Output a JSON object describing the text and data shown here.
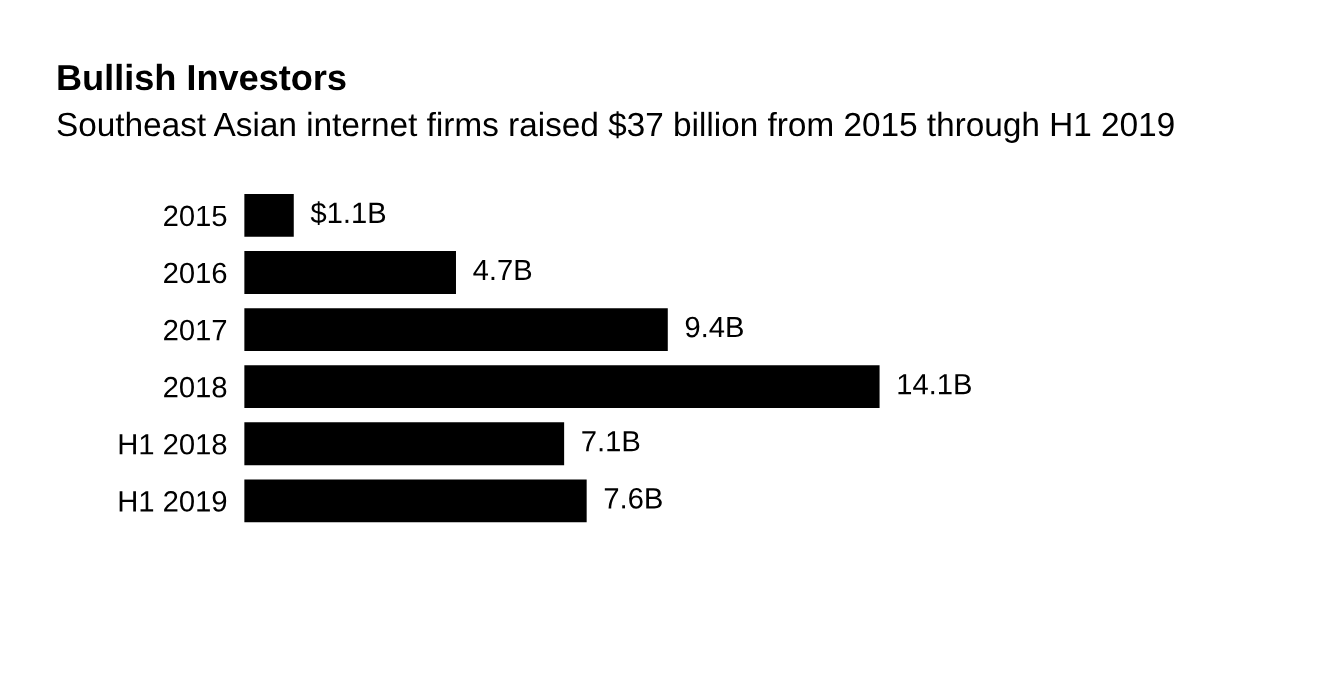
{
  "chart_data": {
    "type": "bar",
    "orientation": "horizontal",
    "title": "Bullish Investors",
    "subtitle": "Southeast Asian internet firms raised $37 billion from 2015 through H1 2019",
    "categories": [
      "2015",
      "2016",
      "2017",
      "2018",
      "H1 2018",
      "H1 2019"
    ],
    "values": [
      1.1,
      4.7,
      9.4,
      14.1,
      7.1,
      7.6
    ],
    "value_labels": [
      "$1.1B",
      "4.7B",
      "9.4B",
      "14.1B",
      "7.1B",
      "7.6B"
    ],
    "color": "#000000",
    "grid": false,
    "legend": false
  }
}
